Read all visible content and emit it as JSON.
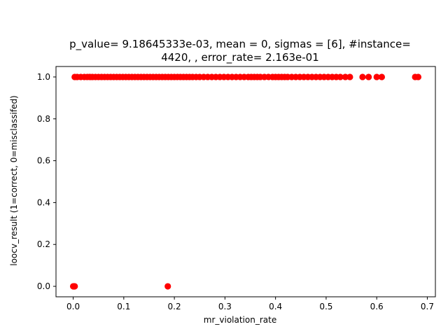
{
  "chart_data": {
    "type": "scatter",
    "title_lines": [
      "p_value= 9.18645333e-03, mean = 0, sigmas = [6], #instance=",
      "4420, , error_rate= 2.163e-01"
    ],
    "xlabel": "mr_violation_rate",
    "ylabel": "loocv_result (1=correct, 0=misclassifed)",
    "xlim": [
      -0.034,
      0.716
    ],
    "ylim": [
      -0.05,
      1.05
    ],
    "xticks": [
      0.0,
      0.1,
      0.2,
      0.3,
      0.4,
      0.5,
      0.6,
      0.7
    ],
    "xtick_labels": [
      "0.0",
      "0.1",
      "0.2",
      "0.3",
      "0.4",
      "0.5",
      "0.6",
      "0.7"
    ],
    "yticks": [
      0.0,
      0.2,
      0.4,
      0.6,
      0.8,
      1.0
    ],
    "ytick_labels": [
      "0.0",
      "0.2",
      "0.4",
      "0.6",
      "0.8",
      "1.0"
    ],
    "grid": false,
    "marker_color": "#ff0000",
    "series": [
      {
        "points_class_1": [
          [
            0.003,
            1
          ],
          [
            0.008,
            1
          ],
          [
            0.015,
            1
          ],
          [
            0.022,
            1
          ],
          [
            0.028,
            1
          ],
          [
            0.033,
            1
          ],
          [
            0.038,
            1
          ],
          [
            0.044,
            1
          ],
          [
            0.05,
            1
          ],
          [
            0.056,
            1
          ],
          [
            0.062,
            1
          ],
          [
            0.068,
            1
          ],
          [
            0.074,
            1
          ],
          [
            0.08,
            1
          ],
          [
            0.086,
            1
          ],
          [
            0.092,
            1
          ],
          [
            0.098,
            1
          ],
          [
            0.104,
            1
          ],
          [
            0.11,
            1
          ],
          [
            0.116,
            1
          ],
          [
            0.122,
            1
          ],
          [
            0.128,
            1
          ],
          [
            0.134,
            1
          ],
          [
            0.14,
            1
          ],
          [
            0.146,
            1
          ],
          [
            0.152,
            1
          ],
          [
            0.158,
            1
          ],
          [
            0.164,
            1
          ],
          [
            0.17,
            1
          ],
          [
            0.176,
            1
          ],
          [
            0.182,
            1
          ],
          [
            0.188,
            1
          ],
          [
            0.194,
            1
          ],
          [
            0.2,
            1
          ],
          [
            0.206,
            1
          ],
          [
            0.212,
            1
          ],
          [
            0.218,
            1
          ],
          [
            0.224,
            1
          ],
          [
            0.23,
            1
          ],
          [
            0.236,
            1
          ],
          [
            0.243,
            1
          ],
          [
            0.25,
            1
          ],
          [
            0.258,
            1
          ],
          [
            0.266,
            1
          ],
          [
            0.274,
            1
          ],
          [
            0.282,
            1
          ],
          [
            0.29,
            1
          ],
          [
            0.298,
            1
          ],
          [
            0.306,
            1
          ],
          [
            0.314,
            1
          ],
          [
            0.322,
            1
          ],
          [
            0.33,
            1
          ],
          [
            0.338,
            1
          ],
          [
            0.346,
            1
          ],
          [
            0.352,
            1
          ],
          [
            0.358,
            1
          ],
          [
            0.364,
            1
          ],
          [
            0.37,
            1
          ],
          [
            0.378,
            1
          ],
          [
            0.386,
            1
          ],
          [
            0.394,
            1
          ],
          [
            0.4,
            1
          ],
          [
            0.406,
            1
          ],
          [
            0.412,
            1
          ],
          [
            0.418,
            1
          ],
          [
            0.424,
            1
          ],
          [
            0.432,
            1
          ],
          [
            0.44,
            1
          ],
          [
            0.448,
            1
          ],
          [
            0.456,
            1
          ],
          [
            0.464,
            1
          ],
          [
            0.472,
            1
          ],
          [
            0.48,
            1
          ],
          [
            0.488,
            1
          ],
          [
            0.496,
            1
          ],
          [
            0.504,
            1
          ],
          [
            0.512,
            1
          ],
          [
            0.52,
            1
          ],
          [
            0.528,
            1
          ],
          [
            0.538,
            1
          ],
          [
            0.547,
            1
          ],
          [
            0.572,
            1
          ],
          [
            0.584,
            1
          ],
          [
            0.6,
            1
          ],
          [
            0.61,
            1
          ],
          [
            0.676,
            1
          ],
          [
            0.682,
            1
          ]
        ],
        "points_class_0": [
          [
            0.0,
            0
          ],
          [
            0.001,
            0
          ],
          [
            0.002,
            0
          ],
          [
            0.003,
            0
          ],
          [
            0.187,
            0
          ]
        ]
      }
    ]
  }
}
